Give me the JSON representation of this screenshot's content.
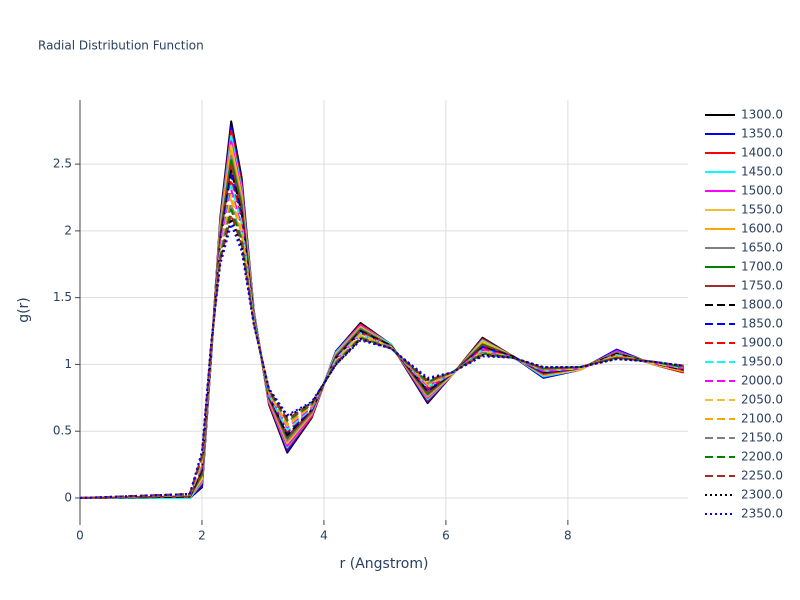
{
  "chart_data": {
    "type": "line",
    "title": "Radial Distribution Function",
    "x_label": "r (Angstrom)",
    "y_label": "g(r)",
    "x": [
      0,
      1.8,
      2.0,
      2.15,
      2.3,
      2.48,
      2.65,
      2.85,
      3.1,
      3.4,
      3.8,
      4.2,
      4.6,
      5.1,
      5.7,
      6.1,
      6.6,
      7.1,
      7.6,
      8.2,
      8.8,
      9.4,
      9.9
    ],
    "xlim": [
      0,
      9.97
    ],
    "ylim": [
      -0.165,
      2.98
    ],
    "xticks": [
      0,
      2,
      4,
      6,
      8
    ],
    "yticks": [
      0,
      0.5,
      1,
      1.5,
      2,
      2.5
    ],
    "grid": true,
    "legend": "right",
    "series": [
      {
        "name": "1300.0",
        "color": "#000000",
        "dash": "solid",
        "values": [
          0,
          0,
          0.08,
          1.05,
          2.1,
          2.82,
          2.4,
          1.4,
          0.7,
          0.34,
          0.6,
          1.1,
          1.31,
          1.15,
          0.71,
          0.92,
          1.2,
          1.06,
          0.9,
          0.96,
          1.11,
          1.0,
          0.94
        ]
      },
      {
        "name": "1350.0",
        "color": "#0000ff",
        "dash": "solid",
        "values": [
          0,
          0,
          0.09,
          1.05,
          2.08,
          2.78,
          2.37,
          1.4,
          0.71,
          0.35,
          0.61,
          1.1,
          1.3,
          1.15,
          0.72,
          0.92,
          1.19,
          1.06,
          0.9,
          0.96,
          1.11,
          1.0,
          0.94
        ]
      },
      {
        "name": "1400.0",
        "color": "#ff0000",
        "dash": "solid",
        "values": [
          0,
          0,
          0.11,
          1.06,
          2.07,
          2.75,
          2.35,
          1.39,
          0.71,
          0.37,
          0.61,
          1.09,
          1.3,
          1.15,
          0.73,
          0.92,
          1.19,
          1.06,
          0.91,
          0.96,
          1.1,
          1.0,
          0.94
        ]
      },
      {
        "name": "1450.0",
        "color": "#00ffff",
        "dash": "solid",
        "values": [
          0,
          0,
          0.12,
          1.06,
          2.05,
          2.71,
          2.32,
          1.39,
          0.72,
          0.38,
          0.62,
          1.09,
          1.29,
          1.15,
          0.74,
          0.92,
          1.18,
          1.06,
          0.91,
          0.96,
          1.1,
          1.0,
          0.95
        ]
      },
      {
        "name": "1500.0",
        "color": "#ff00ff",
        "dash": "solid",
        "values": [
          0,
          0.01,
          0.13,
          1.07,
          2.03,
          2.67,
          2.3,
          1.38,
          0.72,
          0.39,
          0.62,
          1.08,
          1.29,
          1.14,
          0.75,
          0.92,
          1.17,
          1.06,
          0.92,
          0.96,
          1.1,
          1.0,
          0.95
        ]
      },
      {
        "name": "1550.0",
        "color": "#f0c030",
        "dash": "solid",
        "values": [
          0,
          0.01,
          0.14,
          1.07,
          2.02,
          2.64,
          2.27,
          1.38,
          0.73,
          0.41,
          0.63,
          1.08,
          1.28,
          1.14,
          0.76,
          0.92,
          1.17,
          1.06,
          0.92,
          0.96,
          1.09,
          1.0,
          0.95
        ]
      },
      {
        "name": "1600.0",
        "color": "#ffa500",
        "dash": "solid",
        "values": [
          0,
          0.01,
          0.16,
          1.08,
          2.0,
          2.6,
          2.24,
          1.37,
          0.73,
          0.42,
          0.63,
          1.07,
          1.27,
          1.14,
          0.76,
          0.93,
          1.16,
          1.06,
          0.92,
          0.97,
          1.09,
          1.01,
          0.95
        ]
      },
      {
        "name": "1650.0",
        "color": "#808080",
        "dash": "solid",
        "values": [
          0,
          0.01,
          0.17,
          1.08,
          1.98,
          2.56,
          2.22,
          1.37,
          0.74,
          0.43,
          0.64,
          1.07,
          1.27,
          1.14,
          0.77,
          0.93,
          1.15,
          1.06,
          0.93,
          0.97,
          1.09,
          1.01,
          0.96
        ]
      },
      {
        "name": "1700.0",
        "color": "#008000",
        "dash": "solid",
        "values": [
          0,
          0.01,
          0.18,
          1.09,
          1.97,
          2.53,
          2.19,
          1.36,
          0.75,
          0.45,
          0.65,
          1.06,
          1.26,
          1.14,
          0.78,
          0.93,
          1.15,
          1.06,
          0.93,
          0.97,
          1.08,
          1.01,
          0.96
        ]
      },
      {
        "name": "1750.0",
        "color": "#a52a2a",
        "dash": "solid",
        "values": [
          0,
          0.01,
          0.2,
          1.09,
          1.95,
          2.49,
          2.16,
          1.36,
          0.75,
          0.46,
          0.65,
          1.06,
          1.25,
          1.14,
          0.79,
          0.93,
          1.14,
          1.06,
          0.93,
          0.97,
          1.08,
          1.01,
          0.96
        ]
      },
      {
        "name": "1800.0",
        "color": "#000000",
        "dash": "dash",
        "values": [
          0,
          0.01,
          0.21,
          1.1,
          1.93,
          2.45,
          2.14,
          1.35,
          0.76,
          0.47,
          0.66,
          1.05,
          1.25,
          1.14,
          0.8,
          0.93,
          1.13,
          1.06,
          0.94,
          0.97,
          1.08,
          1.01,
          0.96
        ]
      },
      {
        "name": "1850.0",
        "color": "#0000ff",
        "dash": "dash",
        "values": [
          0,
          0.02,
          0.22,
          1.1,
          1.92,
          2.42,
          2.11,
          1.35,
          0.76,
          0.49,
          0.66,
          1.05,
          1.24,
          1.13,
          0.81,
          0.93,
          1.13,
          1.05,
          0.94,
          0.97,
          1.07,
          1.01,
          0.97
        ]
      },
      {
        "name": "1900.0",
        "color": "#ff0000",
        "dash": "dash",
        "values": [
          0,
          0.02,
          0.23,
          1.11,
          1.9,
          2.38,
          2.09,
          1.34,
          0.77,
          0.5,
          0.67,
          1.04,
          1.24,
          1.13,
          0.82,
          0.93,
          1.12,
          1.05,
          0.95,
          0.97,
          1.07,
          1.01,
          0.97
        ]
      },
      {
        "name": "1950.0",
        "color": "#00ffff",
        "dash": "dash",
        "values": [
          0,
          0.02,
          0.25,
          1.11,
          1.88,
          2.34,
          2.06,
          1.34,
          0.77,
          0.51,
          0.67,
          1.04,
          1.23,
          1.13,
          0.83,
          0.93,
          1.11,
          1.05,
          0.95,
          0.97,
          1.07,
          1.01,
          0.97
        ]
      },
      {
        "name": "2000.0",
        "color": "#ff00ff",
        "dash": "dash",
        "values": [
          0,
          0.02,
          0.26,
          1.12,
          1.87,
          2.31,
          2.03,
          1.33,
          0.78,
          0.53,
          0.68,
          1.03,
          1.22,
          1.13,
          0.84,
          0.93,
          1.11,
          1.05,
          0.95,
          0.97,
          1.06,
          1.01,
          0.97
        ]
      },
      {
        "name": "2050.0",
        "color": "#f0c030",
        "dash": "dash",
        "values": [
          0,
          0.02,
          0.27,
          1.12,
          1.85,
          2.27,
          2.01,
          1.33,
          0.79,
          0.54,
          0.69,
          1.03,
          1.22,
          1.13,
          0.85,
          0.93,
          1.1,
          1.05,
          0.96,
          0.97,
          1.06,
          1.01,
          0.98
        ]
      },
      {
        "name": "2100.0",
        "color": "#ffa500",
        "dash": "dash",
        "values": [
          0,
          0.02,
          0.29,
          1.13,
          1.83,
          2.23,
          1.98,
          1.32,
          0.79,
          0.55,
          0.69,
          1.02,
          1.21,
          1.13,
          0.85,
          0.94,
          1.09,
          1.05,
          0.96,
          0.98,
          1.06,
          1.02,
          0.98
        ]
      },
      {
        "name": "2150.0",
        "color": "#808080",
        "dash": "dash",
        "values": [
          0,
          0.02,
          0.3,
          1.13,
          1.82,
          2.2,
          1.95,
          1.32,
          0.8,
          0.57,
          0.7,
          1.02,
          1.2,
          1.13,
          0.86,
          0.94,
          1.09,
          1.05,
          0.96,
          0.98,
          1.05,
          1.02,
          0.98
        ]
      },
      {
        "name": "2200.0",
        "color": "#008000",
        "dash": "dash",
        "values": [
          0,
          0.03,
          0.31,
          1.14,
          1.8,
          2.16,
          1.93,
          1.31,
          0.8,
          0.58,
          0.7,
          1.01,
          1.2,
          1.12,
          0.87,
          0.94,
          1.08,
          1.05,
          0.97,
          0.98,
          1.05,
          1.02,
          0.98
        ]
      },
      {
        "name": "2250.0",
        "color": "#a52a2a",
        "dash": "dash",
        "values": [
          0,
          0.03,
          0.32,
          1.14,
          1.78,
          2.12,
          1.9,
          1.31,
          0.81,
          0.59,
          0.71,
          1.01,
          1.19,
          1.12,
          0.88,
          0.94,
          1.07,
          1.05,
          0.97,
          0.98,
          1.05,
          1.02,
          0.99
        ]
      },
      {
        "name": "2300.0",
        "color": "#000000",
        "dash": "dot",
        "values": [
          0,
          0.03,
          0.34,
          1.15,
          1.77,
          2.09,
          1.88,
          1.3,
          0.81,
          0.61,
          0.71,
          1.0,
          1.19,
          1.12,
          0.89,
          0.94,
          1.07,
          1.05,
          0.98,
          0.98,
          1.04,
          1.02,
          0.99
        ]
      },
      {
        "name": "2350.0",
        "color": "#0000ff",
        "dash": "dot",
        "values": [
          0,
          0.03,
          0.35,
          1.15,
          1.75,
          2.05,
          1.85,
          1.3,
          0.82,
          0.62,
          0.72,
          1.0,
          1.18,
          1.12,
          0.9,
          0.94,
          1.06,
          1.05,
          0.98,
          0.98,
          1.04,
          1.02,
          0.99
        ]
      }
    ]
  }
}
